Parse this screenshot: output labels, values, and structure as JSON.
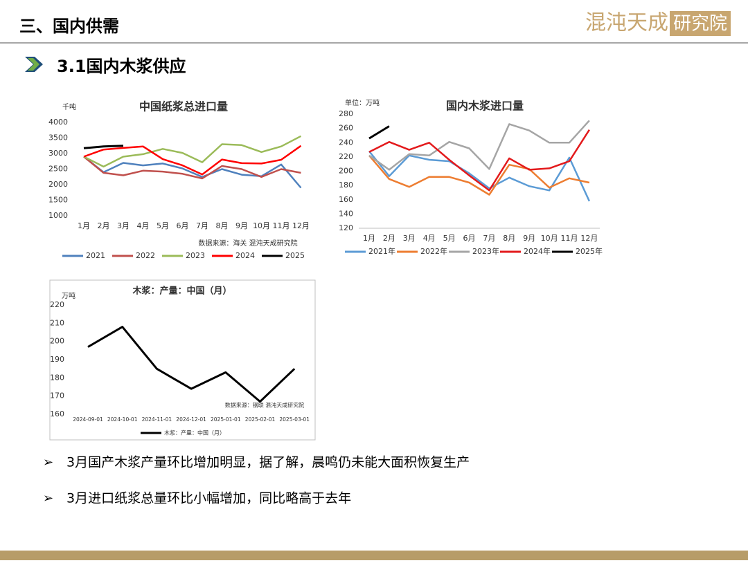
{
  "header": {
    "title": "三、国内供需",
    "logo": [
      "混沌天成",
      "研究院"
    ]
  },
  "section": "3.1国内木浆供应",
  "chart_data": [
    {
      "type": "line",
      "title": "中国纸浆总进口量",
      "unit": "千吨",
      "source": "数据来源：海关  混沌天成研究院",
      "categories": [
        "1月",
        "2月",
        "3月",
        "4月",
        "5月",
        "6月",
        "7月",
        "8月",
        "9月",
        "10月",
        "11月",
        "12月"
      ],
      "ylim": [
        1000,
        4000
      ],
      "yticks": [
        1000,
        1500,
        2000,
        2500,
        3000,
        3500,
        4000
      ],
      "series": [
        {
          "name": "2021",
          "color": "#4f81bd",
          "values": [
            2900,
            2400,
            2700,
            2620,
            2680,
            2520,
            2250,
            2500,
            2320,
            2270,
            2650,
            1900
          ]
        },
        {
          "name": "2022",
          "color": "#c0504d",
          "values": [
            2900,
            2380,
            2300,
            2450,
            2420,
            2350,
            2200,
            2600,
            2500,
            2250,
            2500,
            2380
          ]
        },
        {
          "name": "2023",
          "color": "#9bbb59",
          "values": [
            2900,
            2580,
            2900,
            2980,
            3150,
            3020,
            2720,
            3300,
            3270,
            3050,
            3230,
            3560
          ]
        },
        {
          "name": "2024",
          "color": "#ff0000",
          "values": [
            2900,
            3130,
            3180,
            3230,
            2820,
            2620,
            2330,
            2810,
            2690,
            2680,
            2800,
            3250
          ]
        },
        {
          "name": "2025",
          "color": "#000000",
          "values": [
            3170,
            3230,
            3250,
            null,
            null,
            null,
            null,
            null,
            null,
            null,
            null,
            null
          ]
        }
      ]
    },
    {
      "type": "line",
      "title": "国内木浆进口量",
      "unit": "单位：万吨",
      "categories": [
        "1月",
        "2月",
        "3月",
        "4月",
        "5月",
        "6月",
        "7月",
        "8月",
        "9月",
        "10月",
        "11月",
        "12月"
      ],
      "ylim": [
        120,
        280
      ],
      "yticks": [
        120,
        140,
        160,
        180,
        200,
        220,
        240,
        260,
        280
      ],
      "series": [
        {
          "name": "2021年",
          "color": "#5b9bd5",
          "values": [
            228,
            193,
            222,
            216,
            214,
            197,
            176,
            191,
            179,
            173,
            219,
            158
          ]
        },
        {
          "name": "2022年",
          "color": "#ed7d31",
          "values": [
            222,
            189,
            178,
            192,
            192,
            184,
            167,
            209,
            203,
            177,
            190,
            184
          ]
        },
        {
          "name": "2023年",
          "color": "#a5a5a5",
          "values": [
            222,
            202,
            224,
            222,
            241,
            232,
            203,
            266,
            257,
            240,
            240,
            271
          ]
        },
        {
          "name": "2024年",
          "color": "#e31a1c",
          "values": [
            227,
            241,
            230,
            240,
            216,
            194,
            173,
            218,
            202,
            204,
            214,
            258
          ]
        },
        {
          "name": "2025年",
          "color": "#000000",
          "values": [
            246,
            263,
            null,
            null,
            null,
            null,
            null,
            null,
            null,
            null,
            null,
            null
          ]
        }
      ]
    },
    {
      "type": "line",
      "title": "木浆：产量：中国（月）",
      "unit": "万吨",
      "source": "数据来源：钢联  混沌天成研究院",
      "categories": [
        "2024-09-01",
        "2024-10-01",
        "2024-11-01",
        "2024-12-01",
        "2025-01-01",
        "2025-02-01",
        "2025-03-01"
      ],
      "ylim": [
        160,
        220
      ],
      "yticks": [
        160,
        170,
        180,
        190,
        200,
        210,
        220
      ],
      "series": [
        {
          "name": "木浆：产量：中国（月）",
          "color": "#000000",
          "values": [
            197,
            208,
            185,
            174,
            183,
            167,
            185
          ]
        }
      ]
    }
  ],
  "bullets": [
    "3月国产木浆产量环比增加明显，据了解，晨鸣仍未能大面积恢复生产",
    "3月进口纸浆总量环比小幅增加，同比略高于去年"
  ]
}
